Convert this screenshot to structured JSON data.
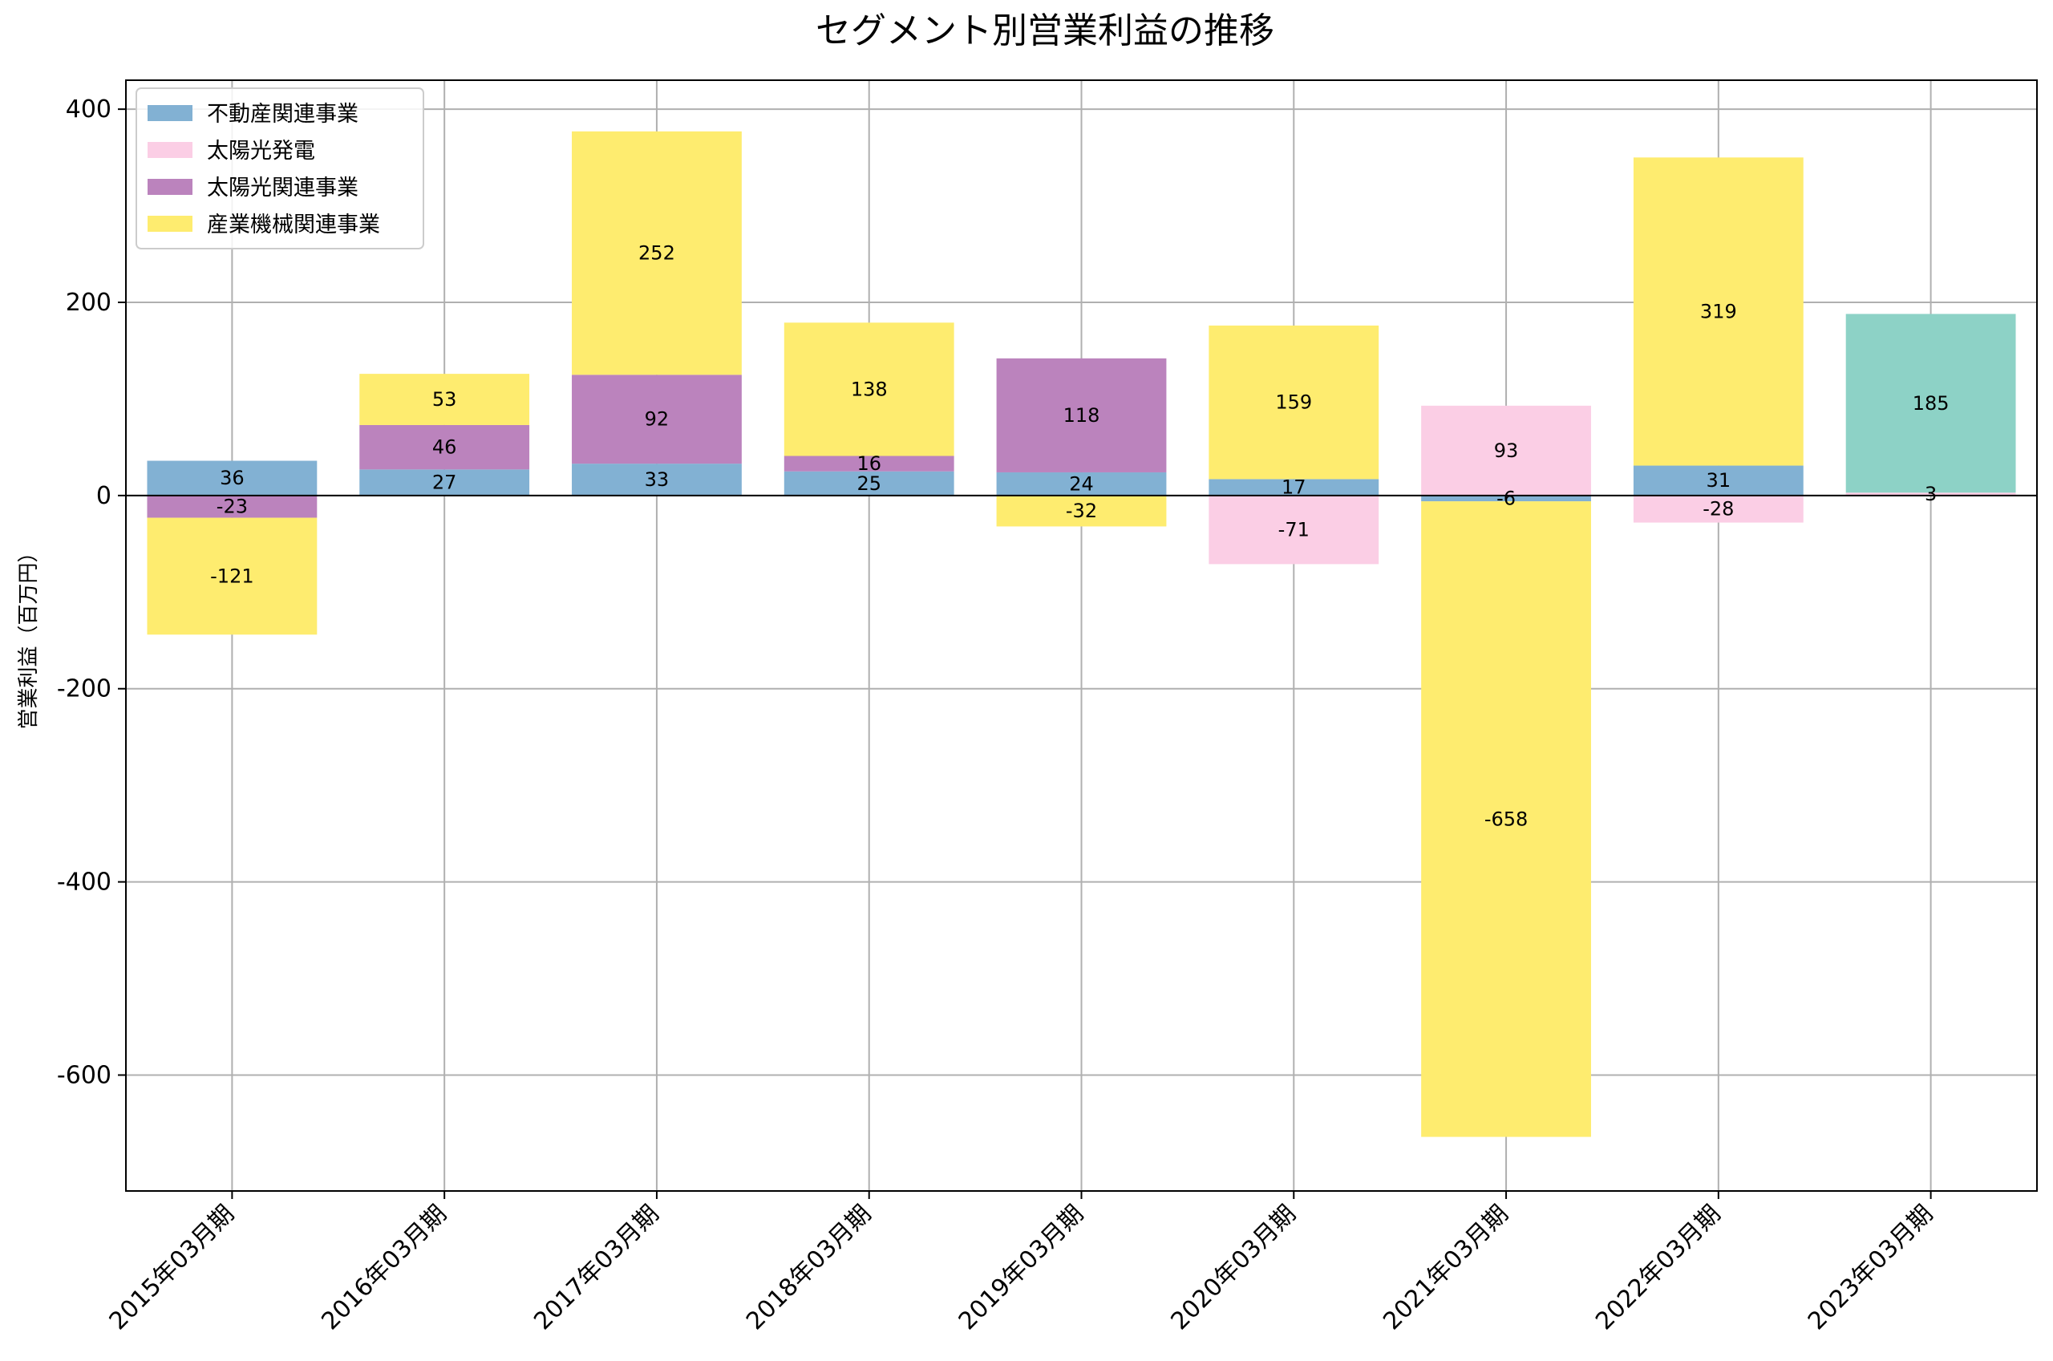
{
  "chart_data": {
    "type": "bar",
    "stacked": true,
    "title": "セグメント別営業利益の推移",
    "xlabel": "",
    "ylabel": "営業利益（百万円）",
    "ylim": [
      -720,
      430
    ],
    "yticks": [
      -600,
      -400,
      -200,
      0,
      200,
      400
    ],
    "grid": true,
    "legend": "top-left",
    "categories": [
      "2015年03月期",
      "2016年03月期",
      "2017年03月期",
      "2018年03月期",
      "2019年03月期",
      "2020年03月期",
      "2021年03月期",
      "2022年03月期",
      "2023年03月期"
    ],
    "series": [
      {
        "name": "不動産関連事業",
        "color": "#82b1d3",
        "values": [
          36,
          27,
          33,
          25,
          24,
          17,
          -6,
          31,
          null
        ]
      },
      {
        "name": "太陽光発電",
        "color": "#fbcee5",
        "values": [
          null,
          null,
          null,
          null,
          null,
          -71,
          93,
          -28,
          3
        ]
      },
      {
        "name": "太陽光関連事業",
        "color": "#bb83bd",
        "values": [
          -23,
          46,
          92,
          16,
          118,
          null,
          null,
          null,
          null
        ]
      },
      {
        "name": "産業機械関連事業",
        "color": "#feec6f",
        "values": [
          -121,
          53,
          252,
          138,
          -32,
          159,
          -658,
          319,
          null
        ]
      },
      {
        "name": "",
        "color": "#8dd2c6",
        "values": [
          null,
          null,
          null,
          null,
          null,
          null,
          null,
          null,
          185
        ]
      }
    ]
  }
}
